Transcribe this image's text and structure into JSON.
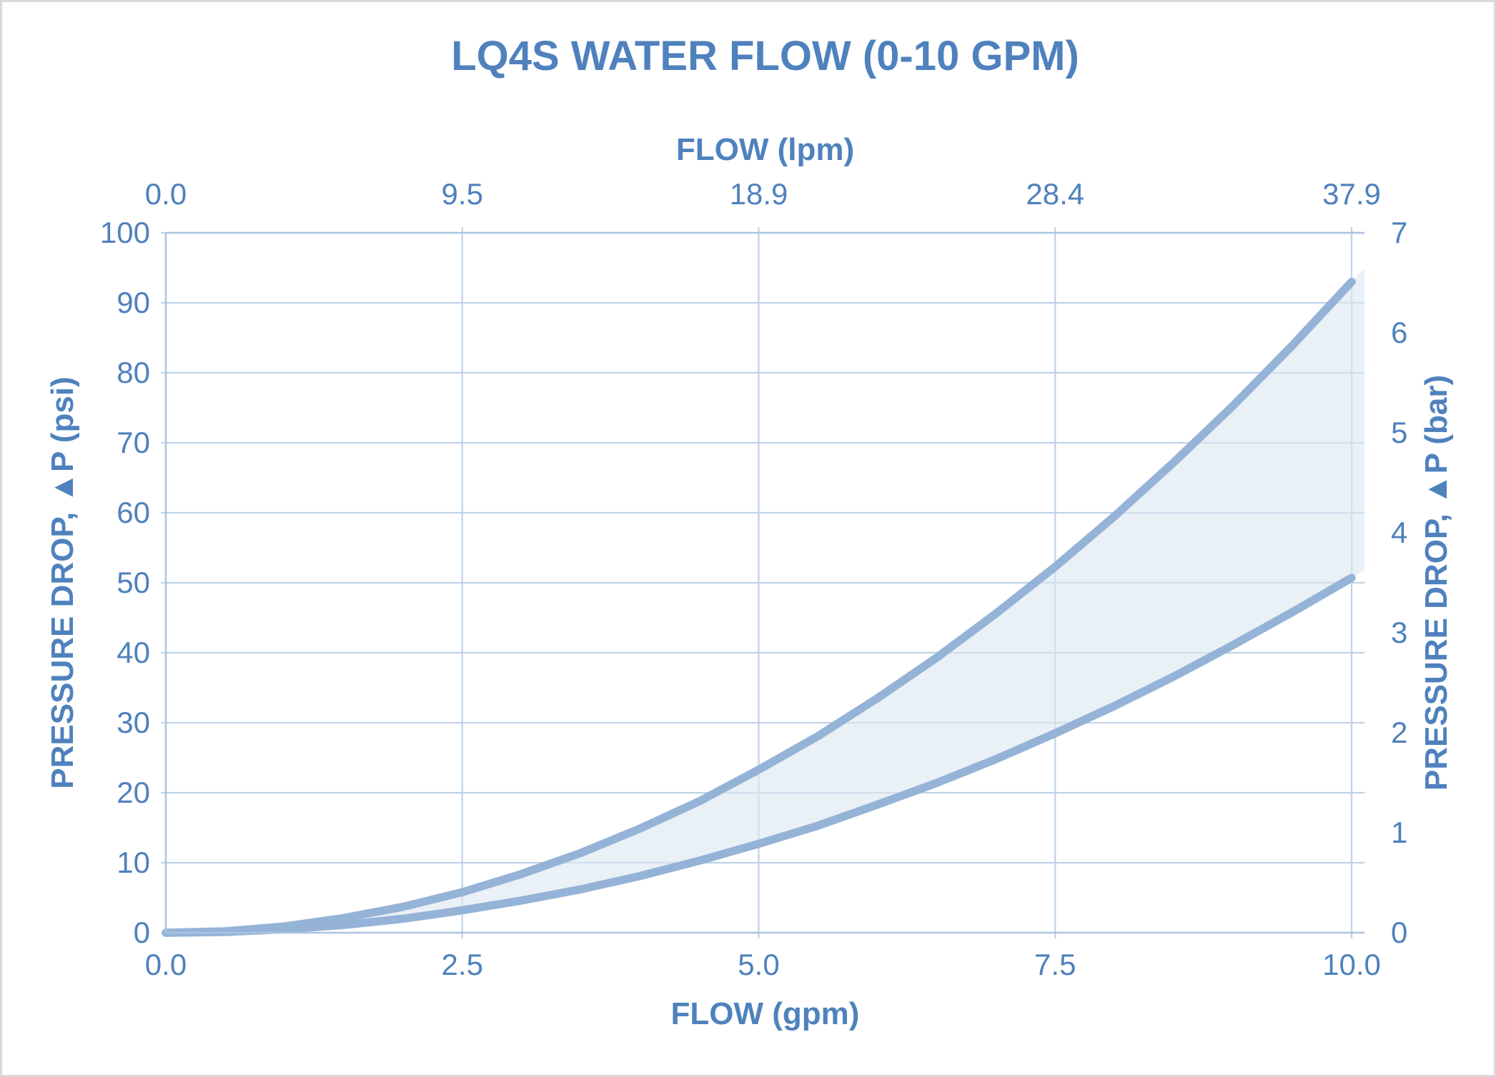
{
  "window": {
    "background_color": "#ffffff",
    "frame_border_color": "#d9d9d9"
  },
  "chart_data": {
    "type": "area",
    "title": "LQ4S WATER FLOW (0-10 GPM)",
    "legend": "none",
    "grid": true,
    "x_axis_bottom": {
      "label": "FLOW (gpm)",
      "min": 0,
      "max": 10,
      "ticks": [
        "0.0",
        "2.5",
        "5.0",
        "7.5",
        "10.0"
      ]
    },
    "x_axis_top": {
      "label": "FLOW (lpm)",
      "min": 0,
      "max": 37.9,
      "ticks": [
        "0.0",
        "9.5",
        "18.9",
        "28.4",
        "37.9"
      ]
    },
    "y_axis_left": {
      "label": "PRESSURE DROP, ▲P (psi)",
      "min": 0,
      "max": 100,
      "ticks": [
        "0",
        "10",
        "20",
        "30",
        "40",
        "50",
        "60",
        "70",
        "80",
        "90",
        "100"
      ]
    },
    "y_axis_right": {
      "label": "PRESSURE DROP, ▲P (bar)",
      "min": 0,
      "max": 7,
      "ticks": [
        "0",
        "1",
        "2",
        "3",
        "4",
        "5",
        "6",
        "7"
      ]
    },
    "band_fill_between_series": true,
    "series": [
      {
        "name": "upper pressure drop curve",
        "units": "gpm vs psi",
        "points": [
          [
            0,
            0
          ],
          [
            0.5,
            0.2
          ],
          [
            1,
            0.9
          ],
          [
            1.5,
            2.1
          ],
          [
            2,
            3.7
          ],
          [
            2.5,
            5.8
          ],
          [
            3,
            8.4
          ],
          [
            3.5,
            11.4
          ],
          [
            4,
            14.9
          ],
          [
            4.5,
            18.8
          ],
          [
            5,
            23.3
          ],
          [
            5.5,
            28.1
          ],
          [
            6,
            33.5
          ],
          [
            6.5,
            39.3
          ],
          [
            7,
            45.6
          ],
          [
            7.5,
            52.3
          ],
          [
            8,
            59.5
          ],
          [
            8.5,
            67.2
          ],
          [
            9,
            75.3
          ],
          [
            9.5,
            83.9
          ],
          [
            10,
            93.0
          ]
        ]
      },
      {
        "name": "lower pressure drop curve",
        "units": "gpm vs psi",
        "points": [
          [
            0,
            0
          ],
          [
            0.5,
            0.1
          ],
          [
            1,
            0.5
          ],
          [
            1.5,
            1.1
          ],
          [
            2,
            2.0
          ],
          [
            2.5,
            3.2
          ],
          [
            3,
            4.6
          ],
          [
            3.5,
            6.2
          ],
          [
            4,
            8.1
          ],
          [
            4.5,
            10.3
          ],
          [
            5,
            12.7
          ],
          [
            5.5,
            15.3
          ],
          [
            6,
            18.3
          ],
          [
            6.5,
            21.4
          ],
          [
            7,
            24.8
          ],
          [
            7.5,
            28.5
          ],
          [
            8,
            32.4
          ],
          [
            8.5,
            36.6
          ],
          [
            9,
            41.1
          ],
          [
            9.5,
            45.8
          ],
          [
            10,
            50.7
          ]
        ]
      }
    ],
    "colors": {
      "text": "#4f81bd",
      "curve_stroke": "#95b3d7",
      "band_fill": "#dce6f1",
      "gridline": "#bfd3e8",
      "axis_line": "#aac4e0"
    }
  }
}
